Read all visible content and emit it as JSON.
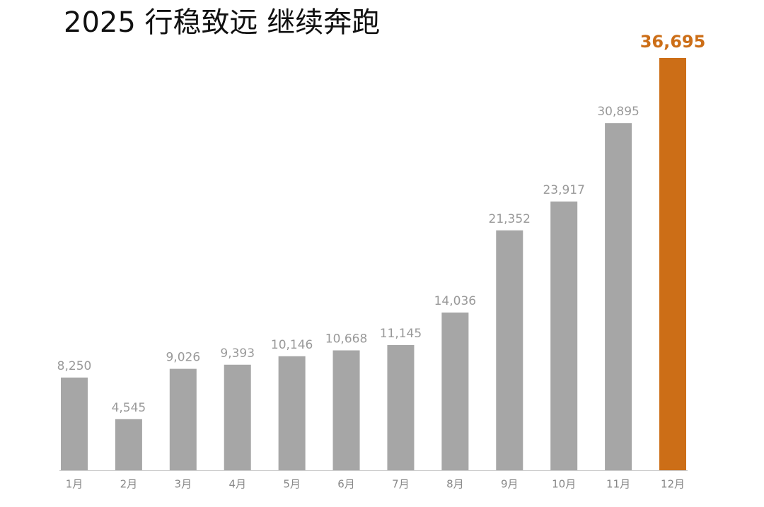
{
  "chart_data": {
    "type": "bar",
    "title": "2025 行稳致远 继续奔跑",
    "categories": [
      "1月",
      "2月",
      "3月",
      "4月",
      "5月",
      "6月",
      "7月",
      "8月",
      "9月",
      "10月",
      "11月",
      "12月"
    ],
    "values": [
      8250,
      4545,
      9026,
      9393,
      10146,
      10668,
      11145,
      14036,
      21352,
      23917,
      30895,
      36695
    ],
    "value_labels": [
      "8,250",
      "4,545",
      "9,026",
      "9,393",
      "10,146",
      "10,668",
      "11,145",
      "14,036",
      "21,352",
      "23,917",
      "30,895",
      "36,695"
    ],
    "colors": [
      "#a6a6a6",
      "#a6a6a6",
      "#a6a6a6",
      "#a6a6a6",
      "#a6a6a6",
      "#a6a6a6",
      "#a6a6a6",
      "#a6a6a6",
      "#a6a6a6",
      "#a6a6a6",
      "#a6a6a6",
      "#cc6e17"
    ]
  }
}
